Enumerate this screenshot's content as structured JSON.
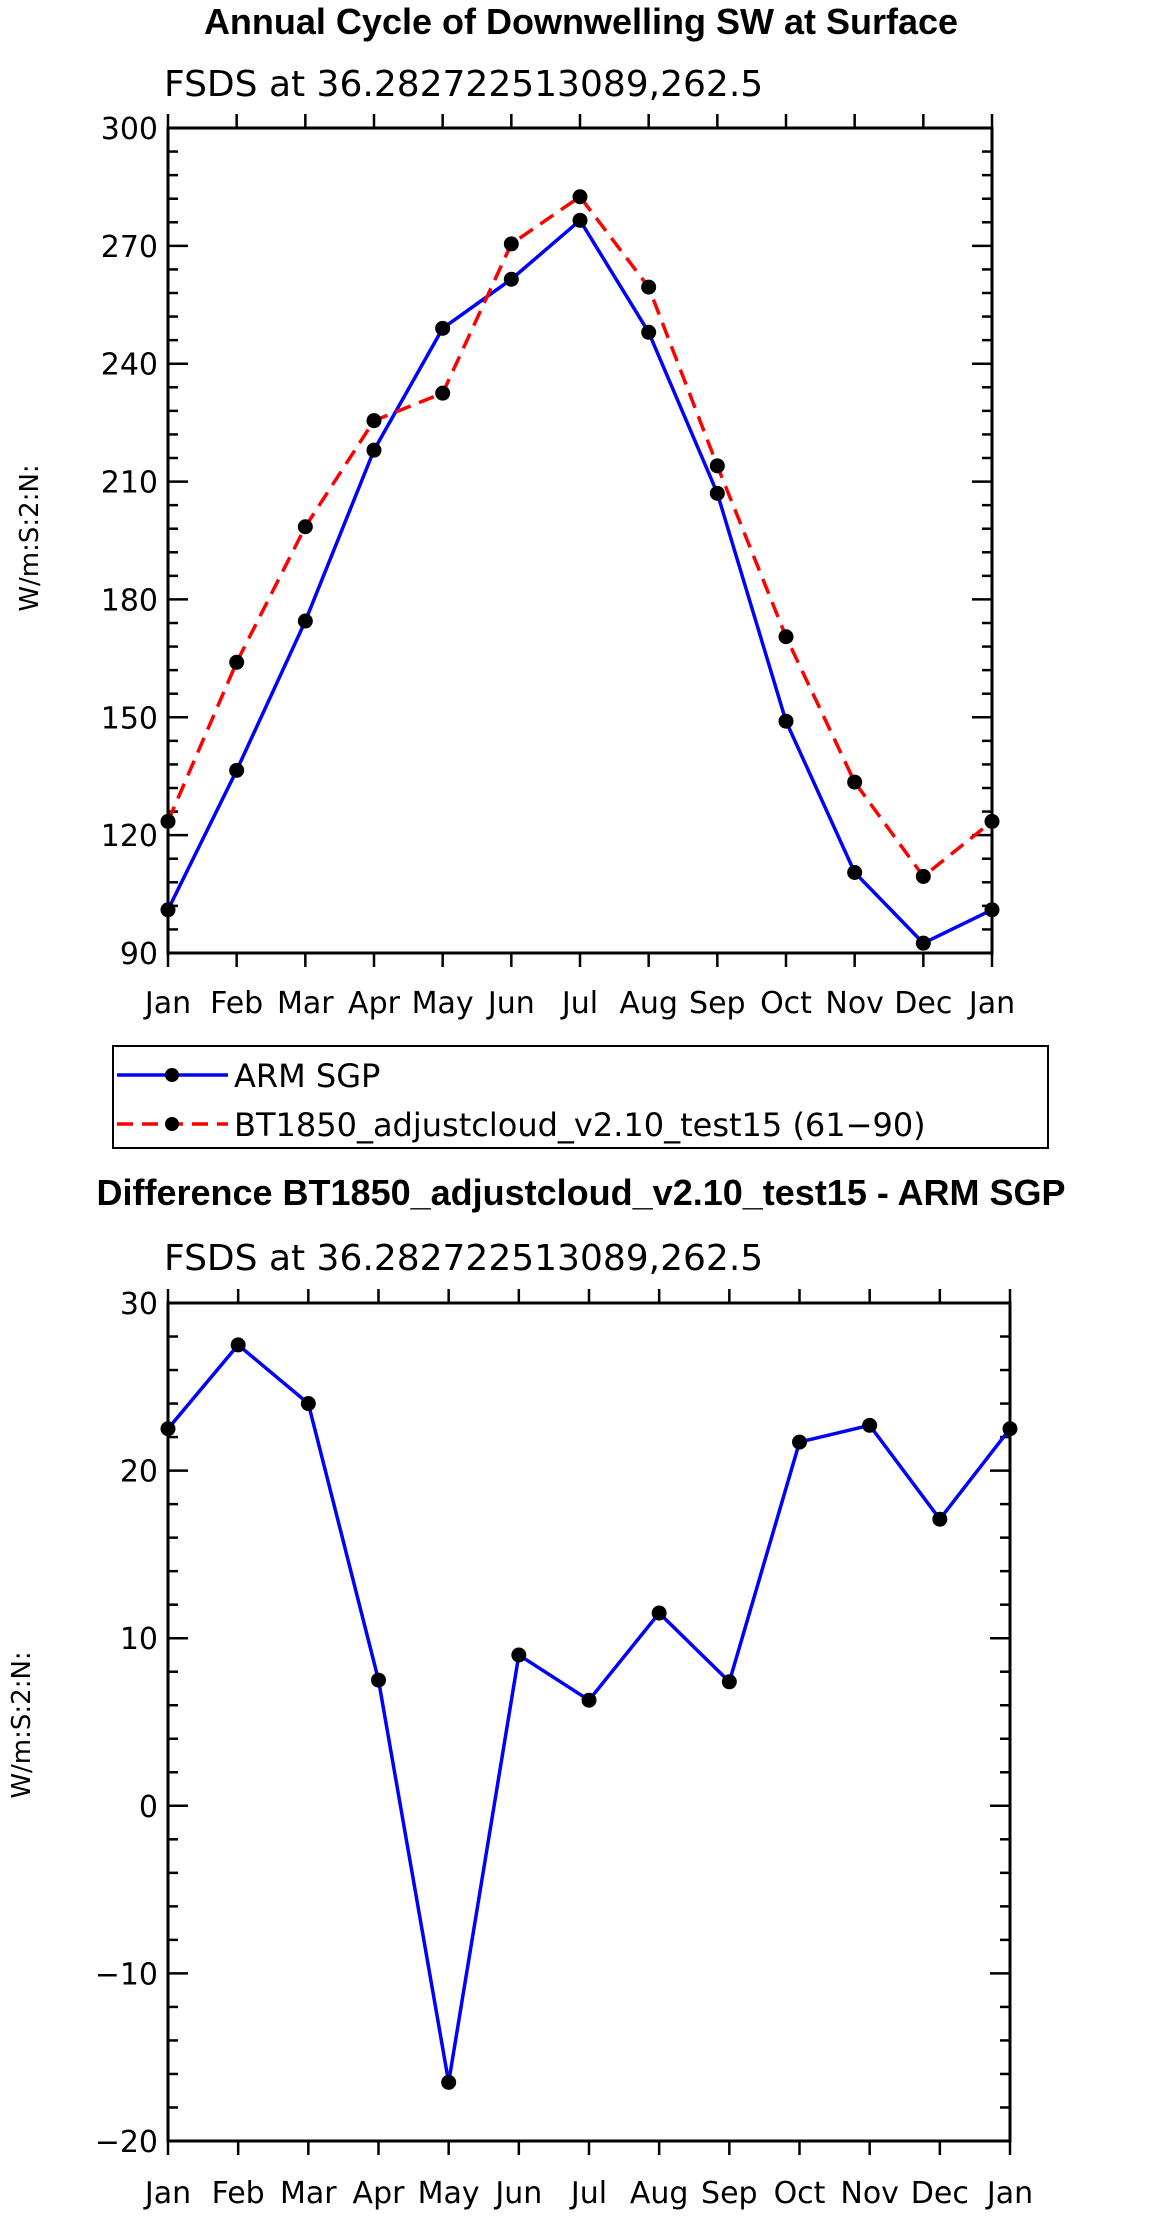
{
  "chart_data": [
    {
      "type": "line",
      "title": "Annual Cycle of Downwelling SW at Surface",
      "subtitle": "FSDS at 36.282722513089,262.5",
      "ylabel": "W/m:S:2:N:",
      "xlabel": "",
      "categories": [
        "Jan",
        "Feb",
        "Mar",
        "Apr",
        "May",
        "Jun",
        "Jul",
        "Aug",
        "Sep",
        "Oct",
        "Nov",
        "Dec",
        "Jan"
      ],
      "ylim": [
        90,
        300
      ],
      "yticks": [
        "90",
        "120",
        "150",
        "180",
        "210",
        "240",
        "270",
        "300"
      ],
      "series": [
        {
          "name": "ARM SGP",
          "color": "#0000ff",
          "dashed": false,
          "values": [
            101,
            136.5,
            174.5,
            218,
            249,
            261.5,
            276.5,
            248,
            207,
            149,
            110.5,
            92.5,
            101
          ]
        },
        {
          "name": "BT1850_adjustcloud_v2.10_test15 (61−90)",
          "color": "#ff0000",
          "dashed": true,
          "values": [
            123.5,
            164,
            198.5,
            225.5,
            232.5,
            270.5,
            282.5,
            259.5,
            214,
            170.5,
            133.5,
            109.5,
            123.5
          ]
        }
      ]
    },
    {
      "type": "line",
      "title": "Difference BT1850_adjustcloud_v2.10_test15 - ARM SGP",
      "subtitle": "FSDS at 36.282722513089,262.5",
      "ylabel": "W/m:S:2:N:",
      "xlabel": "",
      "categories": [
        "Jan",
        "Feb",
        "Mar",
        "Apr",
        "May",
        "Jun",
        "Jul",
        "Aug",
        "Sep",
        "Oct",
        "Nov",
        "Dec",
        "Jan"
      ],
      "ylim": [
        -20,
        30
      ],
      "yticks": [
        "−20",
        "−10",
        "0",
        "10",
        "20",
        "30"
      ],
      "series": [
        {
          "name": "Difference",
          "color": "#0000ff",
          "dashed": false,
          "values": [
            22.5,
            27.5,
            24,
            7.5,
            -16.5,
            9,
            6.3,
            11.5,
            7.4,
            21.7,
            22.7,
            17.1,
            22.5
          ]
        }
      ]
    }
  ]
}
